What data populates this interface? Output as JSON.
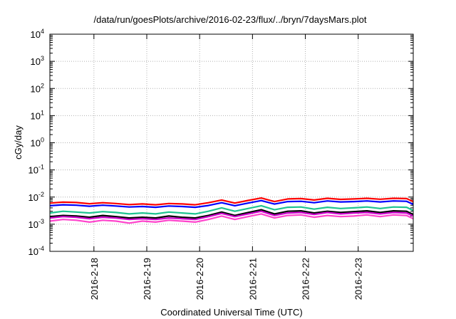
{
  "chart_data": {
    "type": "line",
    "title": "/data/run/goesPlots/archive/2016-02-23/flux/../bryn/7daysMars.plot",
    "xlabel": "Coordinated Universal Time (UTC)",
    "ylabel": "cGy/day",
    "y_scale": "log",
    "ylim": [
      0.0001,
      10000
    ],
    "xlim": [
      "2016-02-17 04:00",
      "2016-02-23 23:00"
    ],
    "x_unit": "hours",
    "grid": true,
    "legend": "none",
    "y_ticks": [
      {
        "base": "10",
        "exp": "-4"
      },
      {
        "base": "10",
        "exp": "-3"
      },
      {
        "base": "10",
        "exp": "-2"
      },
      {
        "base": "10",
        "exp": "-1"
      },
      {
        "base": "10",
        "exp": "0"
      },
      {
        "base": "10",
        "exp": "1"
      },
      {
        "base": "10",
        "exp": "2"
      },
      {
        "base": "10",
        "exp": "3"
      },
      {
        "base": "10",
        "exp": "4"
      }
    ],
    "x_ticks": [
      "2016-2-18",
      "2016-2-19",
      "2016-2-20",
      "2016-2-21",
      "2016-2-22",
      "2016-2-23"
    ],
    "x_hours": [
      0,
      6,
      12,
      18,
      24,
      30,
      36,
      42,
      48,
      54,
      60,
      66,
      72,
      78,
      84,
      90,
      96,
      102,
      108,
      114,
      120,
      126,
      132,
      138,
      144,
      150,
      156,
      162,
      165
    ],
    "series": [
      {
        "color": "#ff0000",
        "values": [
          0.006,
          0.0065,
          0.0063,
          0.0057,
          0.0062,
          0.0058,
          0.0053,
          0.0056,
          0.0052,
          0.0058,
          0.0056,
          0.0052,
          0.0062,
          0.0078,
          0.006,
          0.0075,
          0.0092,
          0.0068,
          0.0085,
          0.0088,
          0.0078,
          0.009,
          0.0082,
          0.0085,
          0.009,
          0.0083,
          0.009,
          0.0088,
          0.0068
        ]
      },
      {
        "color": "#0000ff",
        "values": [
          0.0048,
          0.0052,
          0.005,
          0.0046,
          0.005,
          0.0047,
          0.0043,
          0.0045,
          0.0042,
          0.0047,
          0.0045,
          0.0042,
          0.0049,
          0.0062,
          0.0048,
          0.006,
          0.0074,
          0.0055,
          0.0068,
          0.007,
          0.0062,
          0.0072,
          0.0066,
          0.0068,
          0.0072,
          0.0066,
          0.0072,
          0.007,
          0.0054
        ]
      },
      {
        "color": "#1fc490",
        "values": [
          0.0026,
          0.003,
          0.0028,
          0.0026,
          0.0029,
          0.0027,
          0.0024,
          0.0026,
          0.0024,
          0.0028,
          0.0026,
          0.0024,
          0.003,
          0.004,
          0.003,
          0.0038,
          0.0048,
          0.0034,
          0.0042,
          0.0043,
          0.0036,
          0.0042,
          0.0038,
          0.004,
          0.0043,
          0.0038,
          0.0043,
          0.0042,
          0.0032
        ]
      },
      {
        "color": "#000000",
        "values": [
          0.0019,
          0.0021,
          0.002,
          0.0018,
          0.0021,
          0.0019,
          0.0017,
          0.0018,
          0.0017,
          0.002,
          0.0018,
          0.0017,
          0.0021,
          0.0028,
          0.0021,
          0.0027,
          0.0034,
          0.0024,
          0.003,
          0.0031,
          0.0026,
          0.003,
          0.0027,
          0.0029,
          0.0031,
          0.0027,
          0.0031,
          0.003,
          0.0023
        ]
      },
      {
        "color": "#cc00cc",
        "values": [
          0.0017,
          0.0019,
          0.0018,
          0.0016,
          0.0018,
          0.0017,
          0.0015,
          0.0016,
          0.0015,
          0.0017,
          0.0016,
          0.0015,
          0.0019,
          0.0025,
          0.0019,
          0.0024,
          0.003,
          0.0021,
          0.0026,
          0.0027,
          0.0023,
          0.0027,
          0.0024,
          0.0026,
          0.0027,
          0.0024,
          0.0027,
          0.0026,
          0.002
        ]
      },
      {
        "color": "#ff44cc",
        "values": [
          0.0013,
          0.0015,
          0.0014,
          0.0012,
          0.0014,
          0.0013,
          0.0011,
          0.0013,
          0.0012,
          0.0014,
          0.0013,
          0.0012,
          0.0015,
          0.002,
          0.0015,
          0.0019,
          0.0024,
          0.0017,
          0.0021,
          0.0022,
          0.0018,
          0.0021,
          0.0019,
          0.002,
          0.0022,
          0.0019,
          0.0022,
          0.0021,
          0.0016
        ]
      }
    ]
  }
}
